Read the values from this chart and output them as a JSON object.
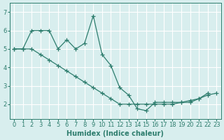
{
  "xlabel": "Humidex (Indice chaleur)",
  "xlim": [
    -0.5,
    23.5
  ],
  "ylim": [
    1.2,
    7.5
  ],
  "xticks": [
    0,
    1,
    2,
    3,
    4,
    5,
    6,
    7,
    8,
    9,
    10,
    11,
    12,
    13,
    14,
    15,
    16,
    17,
    18,
    19,
    20,
    21,
    22,
    23
  ],
  "yticks": [
    2,
    3,
    4,
    5,
    6,
    7
  ],
  "line1_x": [
    0,
    1,
    2,
    3,
    4,
    5,
    6,
    7,
    8,
    9,
    10,
    11,
    12,
    13,
    14,
    15,
    16,
    17,
    18,
    19,
    20,
    21,
    22
  ],
  "line1_y": [
    5.0,
    5.0,
    6.0,
    6.0,
    6.0,
    5.0,
    5.5,
    5.0,
    5.3,
    6.8,
    4.7,
    4.1,
    2.9,
    2.5,
    1.75,
    1.65,
    2.1,
    2.1,
    2.1,
    2.1,
    2.1,
    2.3,
    2.6
  ],
  "line2_x": [
    0,
    1,
    2,
    3,
    4,
    5,
    6,
    7,
    8,
    9,
    10,
    11,
    12,
    13,
    14,
    15,
    16,
    17,
    18,
    19,
    20,
    21,
    22,
    23
  ],
  "line2_y": [
    5.0,
    5.0,
    5.0,
    4.7,
    4.4,
    4.1,
    3.8,
    3.5,
    3.2,
    2.9,
    2.6,
    2.3,
    2.0,
    2.0,
    2.0,
    2.0,
    2.0,
    2.0,
    2.0,
    2.1,
    2.2,
    2.3,
    2.5,
    2.6
  ],
  "line_color": "#2e7d6e",
  "bg_color": "#d8eeee",
  "grid_color": "#ffffff",
  "tick_label_fontsize": 6,
  "xlabel_fontsize": 7
}
